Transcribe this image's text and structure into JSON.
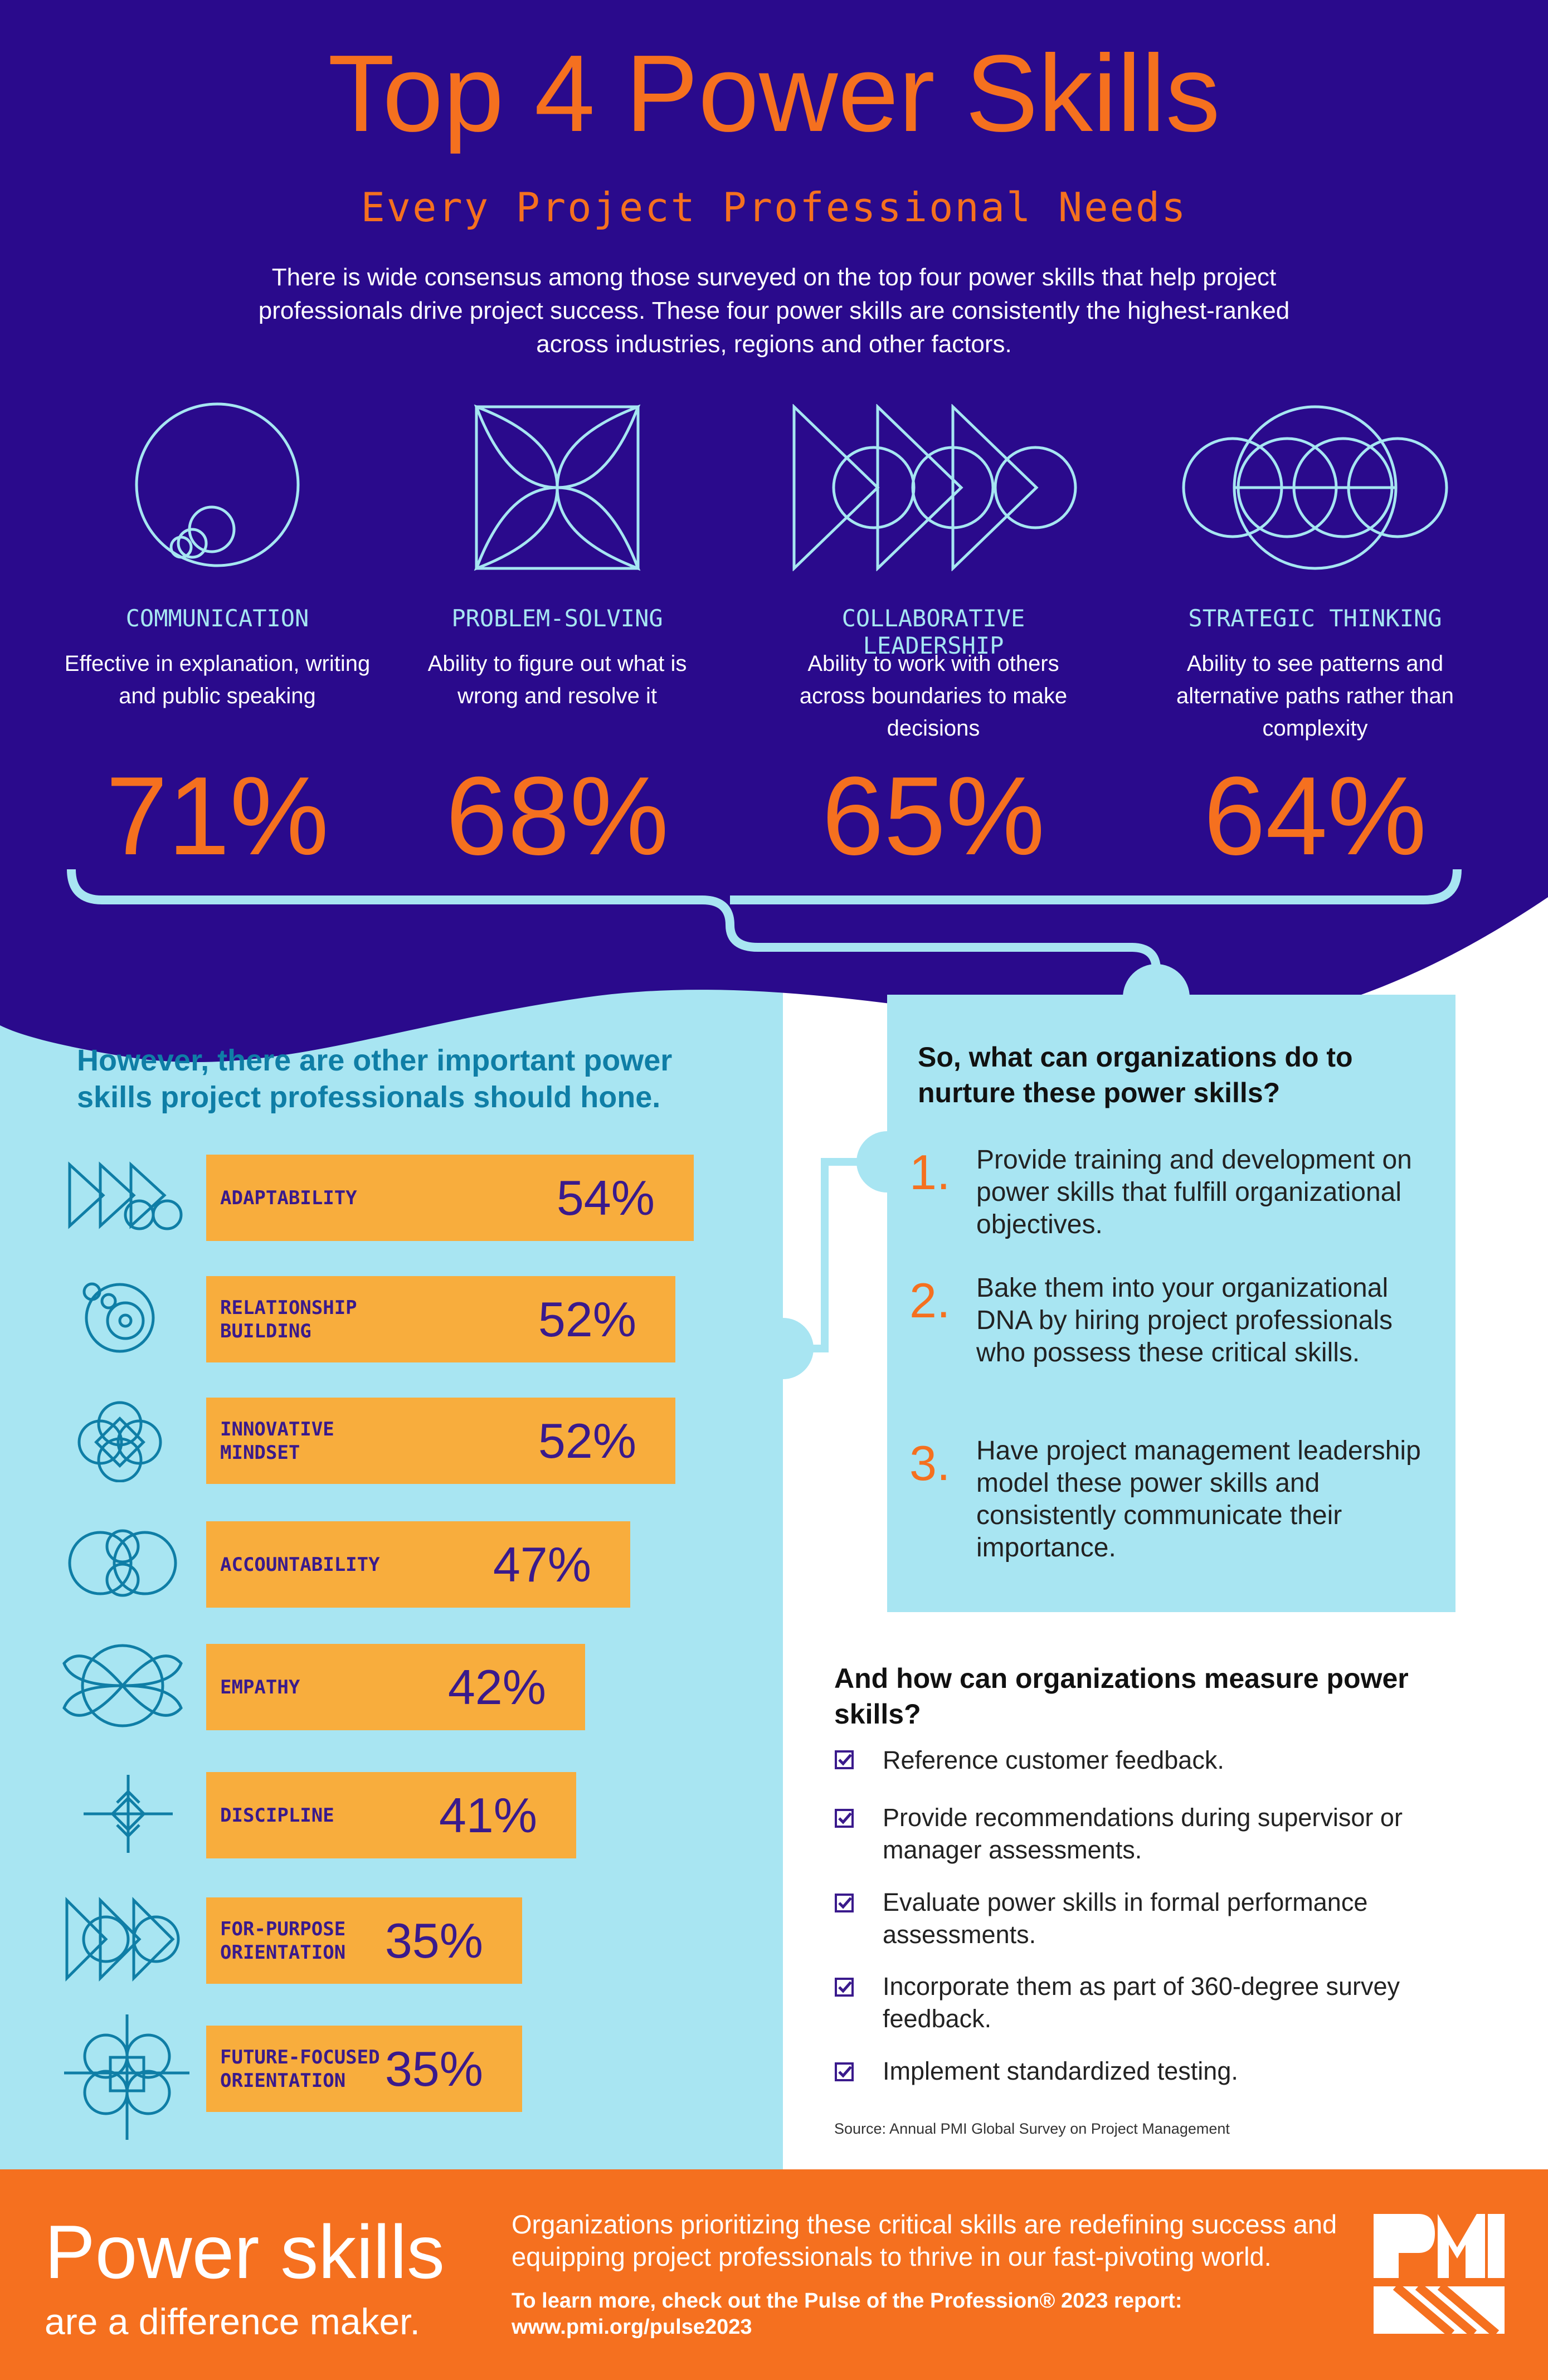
{
  "header": {
    "title": "Top 4 Power Skills",
    "subtitle": "Every Project Professional Needs",
    "intro": "There is wide consensus among those surveyed on the top four power skills that help project professionals drive project success. These four power skills are consistently the highest-ranked across industries, regions and other factors."
  },
  "top_skills": [
    {
      "name": "COMMUNICATION",
      "desc": "Effective in explanation, writing and public speaking",
      "pct": "71%",
      "icon": "circles-icon"
    },
    {
      "name": "PROBLEM-SOLVING",
      "desc": "Ability to figure out what is wrong and resolve it",
      "pct": "68%",
      "icon": "petal-square-icon"
    },
    {
      "name": "COLLABORATIVE LEADERSHIP",
      "desc": "Ability to work with others across boundaries to make decisions",
      "pct": "65%",
      "icon": "triangles-circles-icon"
    },
    {
      "name": "STRATEGIC THINKING",
      "desc": "Ability to see patterns and alternative paths rather than complexity",
      "pct": "64%",
      "icon": "overlapping-circles-icon"
    }
  ],
  "other": {
    "heading": "However, there are other important power skills project professionals should hone."
  },
  "chart_data": [
    {
      "type": "bar",
      "categories": [
        "COMMUNICATION",
        "PROBLEM-SOLVING",
        "COLLABORATIVE LEADERSHIP",
        "STRATEGIC THINKING"
      ],
      "values": [
        71,
        68,
        65,
        64
      ]
    },
    {
      "type": "bar",
      "orientation": "horizontal",
      "categories": [
        "ADAPTABILITY",
        "RELATIONSHIP BUILDING",
        "INNOVATIVE MINDSET",
        "ACCOUNTABILITY",
        "EMPATHY",
        "DISCIPLINE",
        "FOR-PURPOSE ORIENTATION",
        "FUTURE-FOCUSED ORIENTATION"
      ],
      "values": [
        54,
        52,
        52,
        47,
        42,
        41,
        35,
        35
      ],
      "value_labels": [
        "54%",
        "52%",
        "52%",
        "47%",
        "42%",
        "41%",
        "35%",
        "35%"
      ],
      "bar_color": "#f8ad3d"
    }
  ],
  "nurture": {
    "question": "So, what can organizations do to nurture these power skills?",
    "steps": [
      {
        "num": "1.",
        "text": "Provide training and development on power skills that fulfill organizational objectives."
      },
      {
        "num": "2.",
        "text": "Bake them into your organizational DNA by hiring project professionals who possess these critical skills."
      },
      {
        "num": "3.",
        "text": "Have project management leadership model these power skills and consistently communicate their importance."
      }
    ]
  },
  "measure": {
    "question": "And how can organizations measure power skills?",
    "items": [
      "Reference customer feedback.",
      "Provide recommendations during supervisor or manager assessments.",
      "Evaluate power skills in formal performance assessments.",
      "Incorporate them as part of 360-degree survey feedback.",
      "Implement standardized testing."
    ]
  },
  "source": "Source: Annual PMI Global Survey on Project Management",
  "footer": {
    "big": "Power skills",
    "small": "are a difference maker.",
    "text": "Organizations prioritizing these critical skills are redefining success and equipping project professionals to thrive in our fast-pivoting world.",
    "link_line1": "To learn more, check out the Pulse of the Profession® 2023 report:",
    "link_line2": "www.pmi.org/pulse2023",
    "logo_text": "PMI"
  },
  "colors": {
    "navy": "#2a0a8c",
    "orange": "#f5701f",
    "light_blue": "#a8e5f2",
    "bar": "#f8ad3d",
    "icon_teal": "#0f7ea6"
  }
}
